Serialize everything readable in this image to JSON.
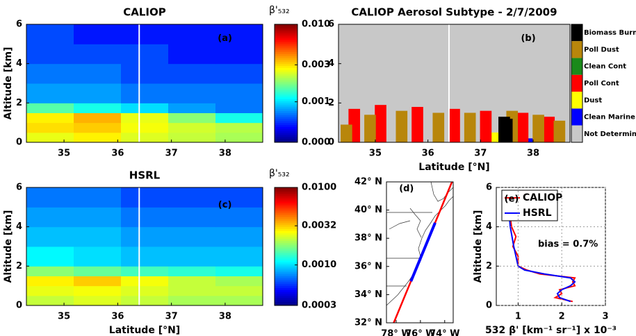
{
  "chart_data": [
    {
      "type": "heatmap",
      "title": "CALIOP",
      "panel_label": "(a)",
      "ylabel": "Altitude [km]",
      "xlim": [
        34.3,
        38.7
      ],
      "xticks": [
        35,
        36,
        37,
        38
      ],
      "ylim": [
        0,
        6
      ],
      "yticks": [
        0,
        2,
        4,
        6
      ],
      "x_edges": [
        34.3,
        35.18,
        36.06,
        36.94,
        37.82,
        38.7
      ],
      "y_edges": [
        0,
        0.5,
        1,
        1.5,
        2,
        3,
        4,
        5,
        6
      ],
      "z": [
        [
          0.0025,
          0.0028,
          0.0024,
          0.0022,
          0.002
        ],
        [
          0.003,
          0.0032,
          0.0026,
          0.0023,
          0.0021
        ],
        [
          0.0028,
          0.0035,
          0.0025,
          0.0018,
          0.0012
        ],
        [
          0.0015,
          0.0012,
          0.001,
          0.0008,
          0.0007
        ],
        [
          0.0008,
          0.0008,
          0.0007,
          0.0007,
          0.0007
        ],
        [
          0.0007,
          0.0007,
          0.0006,
          0.0006,
          0.0006
        ],
        [
          0.0006,
          0.0006,
          0.0006,
          0.0005,
          0.0005
        ],
        [
          0.0006,
          0.0005,
          0.0005,
          0.0005,
          0.0005
        ]
      ],
      "colormap": "jet",
      "zscale": "log",
      "zlim": [
        0.0003,
        0.01
      ],
      "colorbar_title": "β'₅₃₂",
      "zticks": [
        {
          "value": 0.0003,
          "label": "0.000"
        },
        0.001,
        0.003,
        {
          "value": 0.01,
          "label": "0.010"
        }
      ],
      "vline": 36.4
    },
    {
      "type": "category_bar",
      "title": "CALIOP Aerosol Subtype - 2/7/2009",
      "panel_label": "(b)",
      "xlabel": "Latitude [°N]",
      "xlim": [
        34.3,
        38.7
      ],
      "xticks": [
        35,
        36,
        37,
        38
      ],
      "ylim": [
        0,
        6
      ],
      "yticks": [
        0,
        2,
        4,
        6
      ],
      "vline": 36.4,
      "series": [
        {
          "name": "Biomass Burn.",
          "color": "#000000",
          "x": [
            37.45,
            37.5
          ],
          "values": [
            1.3,
            1.2
          ]
        },
        {
          "name": "Poll Dust",
          "color": "#b8860b",
          "x": [
            34.45,
            34.9,
            35.5,
            36.2,
            36.8,
            37.6,
            38.1,
            38.5
          ],
          "values": [
            0.9,
            1.4,
            1.6,
            1.5,
            1.5,
            1.6,
            1.4,
            1.1
          ]
        },
        {
          "name": "Clean Cont",
          "color": "#1a8a1a",
          "x": [],
          "values": []
        },
        {
          "name": "Poll Cont",
          "color": "#ff0000",
          "x": [
            34.6,
            35.1,
            35.8,
            36.5,
            37.1,
            37.8,
            38.3
          ],
          "values": [
            1.7,
            1.9,
            1.8,
            1.7,
            1.6,
            1.5,
            1.3
          ]
        },
        {
          "name": "Dust",
          "color": "#ffff00",
          "x": [
            37.3
          ],
          "values": [
            0.5
          ]
        },
        {
          "name": "Clean Marine",
          "color": "#0000ff",
          "x": [
            38.0
          ],
          "values": [
            0.2
          ]
        },
        {
          "name": "Not Determined",
          "color": "#c8c8c8",
          "x": [],
          "values": []
        }
      ]
    },
    {
      "type": "heatmap",
      "title": "HSRL",
      "panel_label": "(c)",
      "ylabel": "Altitude [km]",
      "xlabel": "Latitude [°N]",
      "xlim": [
        34.3,
        38.7
      ],
      "xticks": [
        35,
        36,
        37,
        38
      ],
      "ylim": [
        0,
        6
      ],
      "yticks": [
        0,
        2,
        4,
        6
      ],
      "x_edges": [
        34.3,
        35.18,
        36.06,
        36.94,
        37.82,
        38.7
      ],
      "y_edges": [
        0,
        0.5,
        1,
        1.5,
        2,
        3,
        4,
        5,
        6
      ],
      "z": [
        [
          0.0022,
          0.0024,
          0.0022,
          0.002,
          0.002
        ],
        [
          0.0025,
          0.0026,
          0.0024,
          0.0022,
          0.0022
        ],
        [
          0.0028,
          0.0032,
          0.0026,
          0.0022,
          0.002
        ],
        [
          0.0018,
          0.0016,
          0.0014,
          0.0013,
          0.0012
        ],
        [
          0.0011,
          0.001,
          0.0009,
          0.0009,
          0.0009
        ],
        [
          0.0009,
          0.0009,
          0.0008,
          0.0008,
          0.0008
        ],
        [
          0.0008,
          0.0008,
          0.0007,
          0.0007,
          0.0007
        ],
        [
          0.0007,
          0.0007,
          0.0006,
          0.0006,
          0.0006
        ]
      ],
      "colormap": "jet",
      "zscale": "log",
      "zlim": [
        0.0003,
        0.01
      ],
      "colorbar_title": "β'₅₃₂",
      "zticks": [
        0.0003,
        {
          "value": 0.001,
          "label": "0.0010"
        },
        0.0032,
        {
          "value": 0.01,
          "label": "0.0100"
        }
      ],
      "vline": 36.4
    },
    {
      "type": "map",
      "panel_label": "(d)",
      "xlim": [
        -78.8,
        -73.3
      ],
      "ylim": [
        32,
        42
      ],
      "xticks": [
        {
          "value": -78,
          "label": "78° W"
        },
        {
          "value": -76,
          "label": "76° W"
        },
        {
          "value": -74,
          "label": "74° W"
        }
      ],
      "yticks": [
        {
          "value": 32,
          "label": "32° N"
        },
        {
          "value": 34,
          "label": "34° N"
        },
        {
          "value": 36,
          "label": "36° N"
        },
        {
          "value": 38,
          "label": "38° N"
        },
        {
          "value": 40,
          "label": "40° N"
        },
        {
          "value": 42,
          "label": "42° N"
        }
      ],
      "lines": [
        {
          "color": "#ff0000",
          "lon": [
            -78.2,
            -73.4
          ],
          "lat": [
            32,
            42
          ]
        },
        {
          "color": "#0000ff",
          "lon": [
            -76.78,
            -74.79
          ],
          "lat": [
            34.95,
            39.1
          ]
        }
      ]
    },
    {
      "type": "line",
      "panel_label": "(e)",
      "ylabel": "Altitude [km]",
      "xlabel": "532 β' [km⁻¹ sr⁻¹] x 10⁻³",
      "xlim": [
        0.5,
        3
      ],
      "xticks": [
        1,
        2,
        3
      ],
      "ylim": [
        0,
        6
      ],
      "yticks": [
        0,
        2,
        4,
        6
      ],
      "grid": true,
      "annotation": "bias = 0.7%",
      "y": [
        0.2,
        0.4,
        0.6,
        0.8,
        1.0,
        1.2,
        1.4,
        1.6,
        1.8,
        2.0,
        2.5,
        3.0,
        3.5,
        4.0,
        4.5,
        5.0,
        5.5,
        5.8
      ],
      "series": [
        {
          "name": "CALIOP",
          "color": "#ff0000",
          "values": [
            2.25,
            1.85,
            2.0,
            1.95,
            2.3,
            2.25,
            2.3,
            1.5,
            1.2,
            1.0,
            1.0,
            0.88,
            0.95,
            0.85,
            0.82,
            0.8,
            0.72,
            0.75
          ]
        },
        {
          "name": "HSRL",
          "color": "#0000ff",
          "values": [
            2.2,
            1.95,
            1.9,
            2.0,
            2.2,
            2.3,
            2.2,
            1.6,
            1.15,
            1.0,
            0.95,
            0.9,
            0.86,
            0.82,
            0.8,
            0.77,
            0.74,
            0.72
          ]
        }
      ]
    }
  ]
}
